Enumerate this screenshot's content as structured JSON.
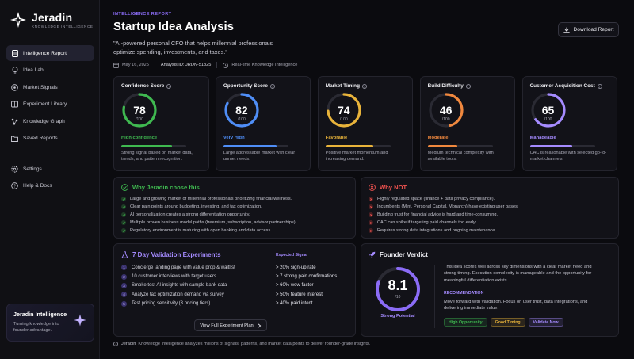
{
  "app": {
    "name": "Jeradin",
    "subtitle": "KNOWLEDGE INTELLIGENCE"
  },
  "sidebar": {
    "items": [
      {
        "label": "Intelligence Report",
        "icon": "document-icon",
        "active": true
      },
      {
        "label": "Idea Lab",
        "icon": "lightbulb-icon"
      },
      {
        "label": "Market Signals",
        "icon": "signal-icon"
      },
      {
        "label": "Experiment Library",
        "icon": "library-icon"
      },
      {
        "label": "Knowledge Graph",
        "icon": "graph-icon"
      },
      {
        "label": "Saved Reports",
        "icon": "folder-icon"
      }
    ],
    "secondary": [
      {
        "label": "Settings",
        "icon": "gear-icon"
      },
      {
        "label": "Help & Docs",
        "icon": "help-icon"
      }
    ],
    "promo": {
      "title": "Jeradin Intelligence",
      "text": "Turning knowledge into founder advantage."
    }
  },
  "header": {
    "eyebrow": "INTELLIGENCE REPORT",
    "title": "Startup Idea Analysis",
    "quote": "\"AI-powered personal CFO that helps millennial professionals optimize spending, investments, and taxes.\"",
    "date": "May 16, 2025",
    "analysis_id": "Analysis ID: JRDN-51825",
    "realtime": "Real-time Knowledge Intelligence",
    "download_label": "Download Report"
  },
  "scores": [
    {
      "title": "Confidence Score",
      "value": "78",
      "denom": "/100",
      "level": "High confidence",
      "fraction": 0.78,
      "color": "#3fb950",
      "desc": "Strong signal based on market data, trends, and pattern recognition."
    },
    {
      "title": "Opportunity Score",
      "value": "82",
      "denom": "/100",
      "level": "Very High",
      "fraction": 0.82,
      "color": "#4f8ef7",
      "desc": "Large addressable market with clear unmet needs."
    },
    {
      "title": "Market Timing",
      "value": "74",
      "denom": "/100",
      "level": "Favorable",
      "fraction": 0.74,
      "color": "#e8b33a",
      "desc": "Positive market momentum and increasing demand."
    },
    {
      "title": "Build Difficulty",
      "value": "46",
      "denom": "/100",
      "level": "Moderate",
      "fraction": 0.46,
      "color": "#f0883e",
      "desc": "Medium technical complexity with available tools."
    },
    {
      "title": "Customer Acquisition Cost",
      "value": "65",
      "denom": "/100",
      "level": "Manageable",
      "fraction": 0.65,
      "color": "#a58bff",
      "desc": "CAC is reasonable with selected go-to-market channels."
    }
  ],
  "why": {
    "title": "Why Jeradin chose this",
    "color": "#3fb950",
    "items": [
      "Large and growing market of millennial professionals prioritizing financial wellness.",
      "Clear pain points around budgeting, investing, and tax optimization.",
      "AI personalization creates a strong differentiation opportunity.",
      "Multiple proven business model paths (freemium, subscription, advisor partnerships).",
      "Regulatory environment is maturing with open banking and data access."
    ]
  },
  "whynot": {
    "title": "Why NOT",
    "color": "#f0524f",
    "items": [
      "Highly regulated space (finance + data privacy compliance).",
      "Incumbents (Mint, Personal Capital, Monarch) have existing user bases.",
      "Building trust for financial advice is hard and time-consuming.",
      "CAC can spike if targeting paid channels too early.",
      "Requires strong data integrations and ongoing maintenance."
    ]
  },
  "experiments": {
    "title": "7 Day Validation Experiments",
    "signal_header": "Expected Signal",
    "rows": [
      {
        "num": "1",
        "task": "Concierge landing page with value prop & waitlist",
        "signal": "> 20% sign-up rate"
      },
      {
        "num": "2",
        "task": "10 customer interviews with target users",
        "signal": "> 7 strong pain confirmations"
      },
      {
        "num": "3",
        "task": "Smoke test AI insights with sample bank data",
        "signal": "> 60% wow factor"
      },
      {
        "num": "4",
        "task": "Analyze tax optimization demand via survey",
        "signal": "> 50% feature interest"
      },
      {
        "num": "5",
        "task": "Test pricing sensitivity (3 pricing tiers)",
        "signal": "> 40% paid intent"
      }
    ],
    "button_label": "View Full Experiment Plan"
  },
  "verdict": {
    "title": "Founder Verdict",
    "score": "8.1",
    "denom": "/10",
    "fraction": 0.81,
    "level": "Strong Potential",
    "summary": "This idea scores well across key dimensions with a clear market need and strong timing. Execution complexity is manageable and the opportunity for meaningful differentiation exists.",
    "rec_label": "RECOMMENDATION",
    "rec_text": "Move forward with validation. Focus on user trust, data integrations, and delivering immediate value.",
    "chips": [
      {
        "label": "High Opportunity",
        "color": "#3fb950"
      },
      {
        "label": "Good Timing",
        "color": "#e8b33a"
      },
      {
        "label": "Validate Now",
        "color": "#a58bff"
      }
    ]
  },
  "footnote": {
    "brand": "Jeradin",
    "text": "Knowledge Intelligence analyzes millions of signals, patterns, and market data points to deliver founder-grade insights."
  }
}
